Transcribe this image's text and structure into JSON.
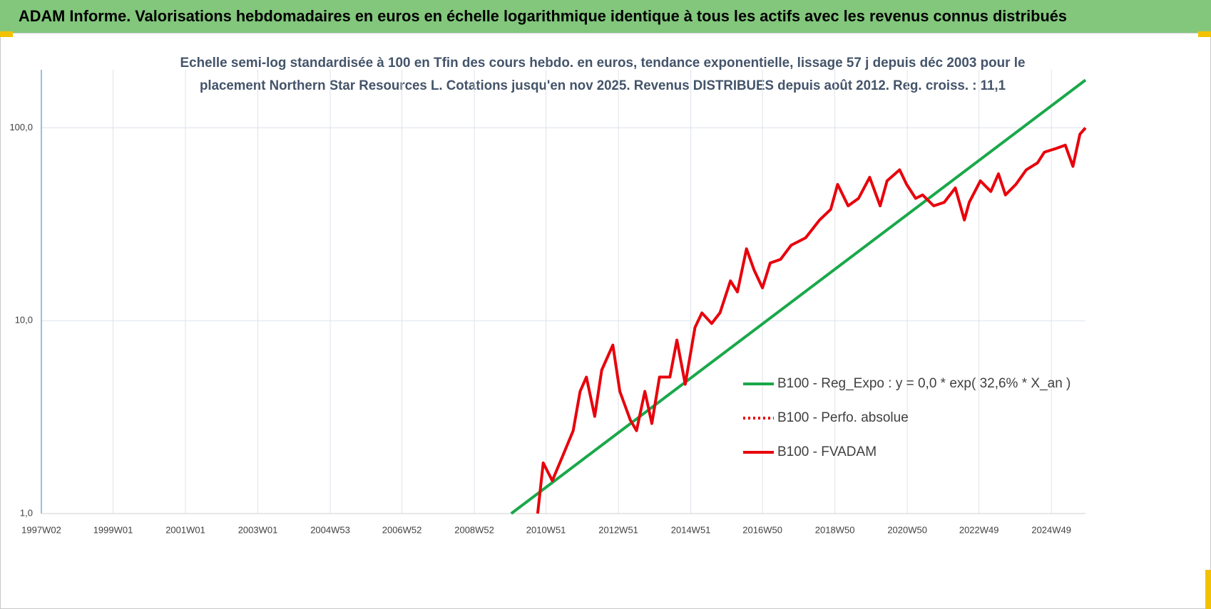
{
  "chart_data": {
    "type": "line",
    "title": "ADAM Informe. Valorisations hebdomadaires en euros en échelle logarithmique identique à tous les actifs avec les revenus connus distribués",
    "subtitle": [
      "Echelle semi-log standardisée à 100 en Tfin des cours hebdo. en euros, tendance exponentielle, lissage 57 j depuis déc 2003 pour le",
      "placement Northern Star Resources L. Cotations jusqu'en nov 2025. Revenus DISTRIBUES depuis août 2012. Reg. croiss. : 11,1"
    ],
    "log_scale": true,
    "grid": true,
    "legend": "right",
    "xlim": [
      "1997W02",
      "2025W46"
    ],
    "xticks": [
      "1997W02",
      "1999W01",
      "2001W01",
      "2003W01",
      "2004W53",
      "2006W52",
      "2008W52",
      "2010W51",
      "2012W51",
      "2014W51",
      "2016W50",
      "2018W50",
      "2020W50",
      "2022W49",
      "2024W49"
    ],
    "ylim": [
      1,
      200
    ],
    "yticks": [
      {
        "value": 1,
        "label": "1,0"
      },
      {
        "value": 10,
        "label": "10,0"
      },
      {
        "value": 100,
        "label": "100,0"
      }
    ],
    "series": [
      {
        "name": "B100 - Reg_Expo : y = 0,0 * exp( 32,6% *  X_an )",
        "color": "#1aa84a",
        "style": "solid",
        "x": [
          "2010W01",
          "2025W46"
        ],
        "values": [
          1.0,
          177
        ]
      },
      {
        "name": "B100 - Perfo. absolue",
        "color": "#e8000b",
        "style": "dotted",
        "x": [],
        "values": []
      },
      {
        "name": "B100 - FVADAM",
        "color": "#e8000b",
        "style": "solid",
        "x": [
          "2010W39",
          "2010W47",
          "2011W08",
          "2011W23",
          "2011W38",
          "2011W48",
          "2012W05",
          "2012W17",
          "2012W27",
          "2012W43",
          "2013W01",
          "2013W16",
          "2013W25",
          "2013W37",
          "2013W47",
          "2014W06",
          "2014W21",
          "2014W31",
          "2014W43",
          "2015W05",
          "2015W15",
          "2015W29",
          "2015W41",
          "2016W04",
          "2016W14",
          "2016W27",
          "2016W38",
          "2016W50",
          "2017W09",
          "2017W24",
          "2017W39",
          "2018W08",
          "2018W28",
          "2018W44",
          "2019W02",
          "2019W17",
          "2019W32",
          "2019W48",
          "2020W11",
          "2020W21",
          "2020W39",
          "2020W49",
          "2021W10",
          "2021W20",
          "2021W36",
          "2021W51",
          "2022W15",
          "2022W28",
          "2022W35",
          "2022W51",
          "2023W14",
          "2023W25",
          "2023W35",
          "2023W50",
          "2024W13",
          "2024W29",
          "2024W39",
          "2025W03",
          "2025W17",
          "2025W28",
          "2025W38",
          "2025W46"
        ],
        "values": [
          1.0,
          1.83,
          1.48,
          1.99,
          2.69,
          4.3,
          5.1,
          3.19,
          5.55,
          7.47,
          4.3,
          3.06,
          2.69,
          4.3,
          2.93,
          5.1,
          5.1,
          7.93,
          4.68,
          9.23,
          10.98,
          9.67,
          11.0,
          16.1,
          14.1,
          23.6,
          18.3,
          14.8,
          19.9,
          20.8,
          24.6,
          26.9,
          33.3,
          37.8,
          50.9,
          39.4,
          43.1,
          55.4,
          39.4,
          53.1,
          60.6,
          50.9,
          43.1,
          44.9,
          39.4,
          41.1,
          48.8,
          33.3,
          41.1,
          53.1,
          46.8,
          57.8,
          44.9,
          50.9,
          60.6,
          65.8,
          74.8,
          78.0,
          81.4,
          63.1,
          92.7,
          100
        ]
      }
    ]
  }
}
